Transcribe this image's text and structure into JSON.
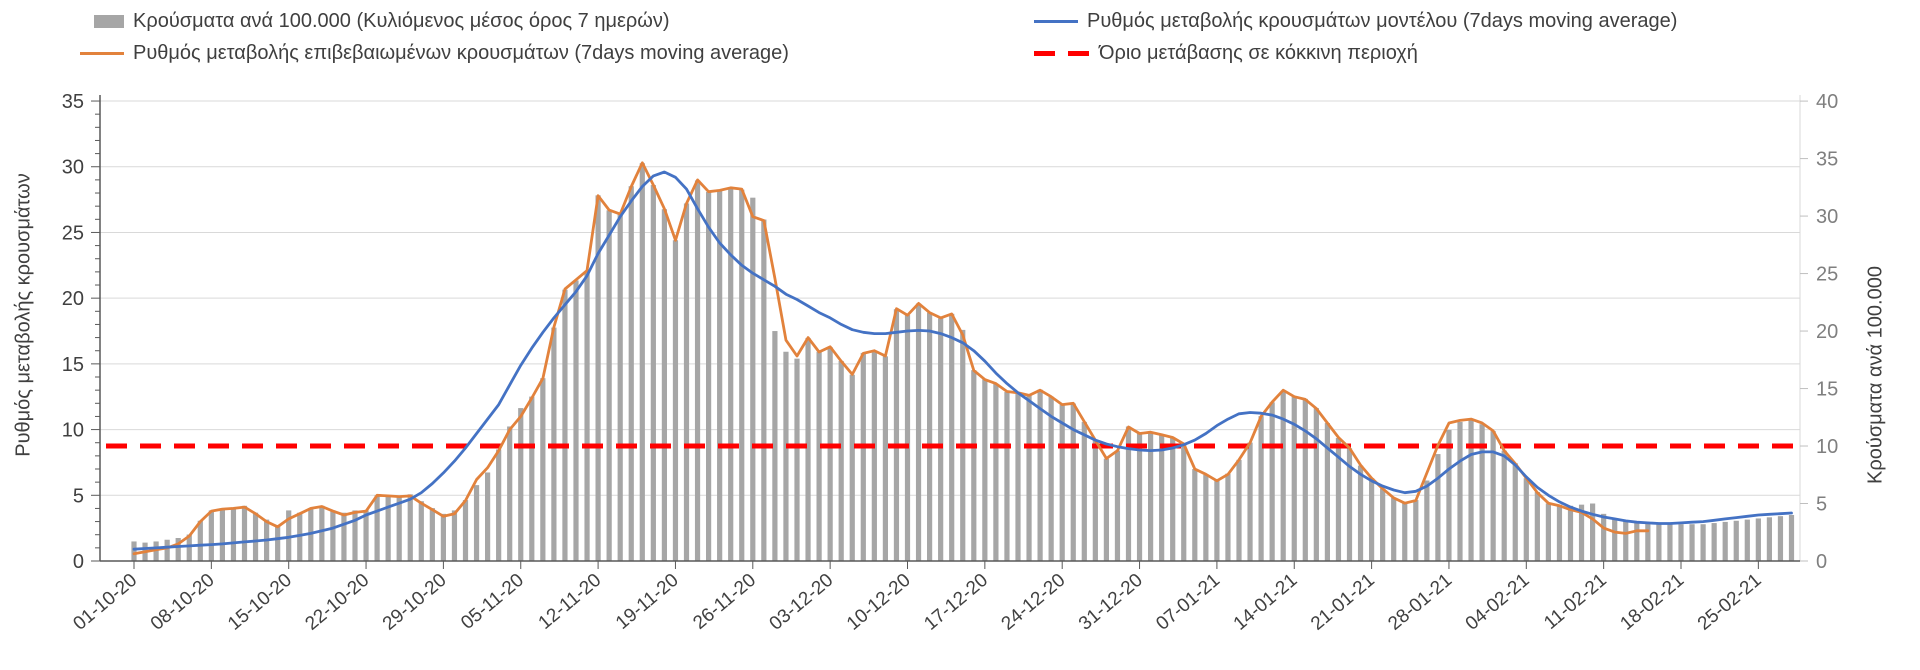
{
  "legend": {
    "items": [
      {
        "swatch": "bar",
        "color": "#A6A6A6"
      },
      {
        "swatch": "line",
        "color": "#4472C4"
      },
      {
        "swatch": "line",
        "color": "#E2823C"
      },
      {
        "swatch": "dash",
        "color": "#FF0000"
      }
    ]
  },
  "chart_data": {
    "type": "combo",
    "title": "",
    "num_points": 151,
    "x": {
      "start": "01-10-20",
      "end": "28-02-21",
      "frequency": "daily",
      "tick_labels": [
        "01-10-20",
        "08-10-20",
        "15-10-20",
        "22-10-20",
        "29-10-20",
        "05-11-20",
        "12-11-20",
        "19-11-20",
        "26-11-20",
        "03-12-20",
        "10-12-20",
        "17-12-20",
        "24-12-20",
        "31-12-20",
        "07-01-21",
        "14-01-21",
        "21-01-21",
        "28-01-21",
        "04-02-21",
        "11-02-21",
        "18-02-21",
        "25-02-21"
      ]
    },
    "axes": {
      "left": {
        "title": "Ρυθμός μεταβολής κρουσμάτων",
        "min": 0,
        "max": 35,
        "ticks": [
          0,
          5,
          10,
          15,
          20,
          25,
          30,
          35
        ]
      },
      "right": {
        "title": "Κρούσματα ανά 100.000",
        "min": 0,
        "max": 40,
        "ticks": [
          0,
          5,
          10,
          15,
          20,
          25,
          30,
          35,
          40
        ]
      }
    },
    "grid": true,
    "series": [
      {
        "name": "Κρούσματα ανά 100.000 (Κυλιόμενος μέσος όρος 7 ημερών)",
        "type": "bar",
        "axis": "right",
        "color": "#A6A6A6",
        "values": [
          1.7,
          1.6,
          1.7,
          1.85,
          2.0,
          2.3,
          3.5,
          4.4,
          4.5,
          4.6,
          4.8,
          4.2,
          3.6,
          3.1,
          4.4,
          4.2,
          4.6,
          4.8,
          4.4,
          4.2,
          4.4,
          4.4,
          5.7,
          5.7,
          5.6,
          5.8,
          5.2,
          4.6,
          4.1,
          4.4,
          5.3,
          6.6,
          7.7,
          9.7,
          11.7,
          13.3,
          14.3,
          15.9,
          20.3,
          23.6,
          24.4,
          25.2,
          31.8,
          30.5,
          30.2,
          32.6,
          34.6,
          32.7,
          30.6,
          27.9,
          31.1,
          33.1,
          32.1,
          32.2,
          32.5,
          32.3,
          31.6,
          29.7,
          20.0,
          18.2,
          17.6,
          19.4,
          18.2,
          18.6,
          17.4,
          16.2,
          18.1,
          18.3,
          17.8,
          21.9,
          21.4,
          22.4,
          21.6,
          21.1,
          21.5,
          20.1,
          16.6,
          15.8,
          15.4,
          14.7,
          14.6,
          14.4,
          14.9,
          14.3,
          13.6,
          13.7,
          12.1,
          10.5,
          8.9,
          9.6,
          11.7,
          11.1,
          11.2,
          11.0,
          10.7,
          10.2,
          8.0,
          7.5,
          7.0,
          7.6,
          8.8,
          10.3,
          12.6,
          13.8,
          14.8,
          14.3,
          14.1,
          13.3,
          12.0,
          10.7,
          9.8,
          8.3,
          7.2,
          6.3,
          5.5,
          5.0,
          5.3,
          7.0,
          9.3,
          11.4,
          12.1,
          12.3,
          11.9,
          11.3,
          9.6,
          8.5,
          7.2,
          6.0,
          5.0,
          4.9,
          4.8,
          4.9,
          5.0,
          4.1,
          3.7,
          3.5,
          3.4,
          3.3,
          3.2,
          3.2,
          3.2,
          3.2,
          3.2,
          3.3,
          3.4,
          3.5,
          3.6,
          3.7,
          3.8,
          3.9,
          4.0
        ]
      },
      {
        "name": "Ρυθμός μεταβολής επιβεβαιωμένων κρουσμάτων (7days moving average)",
        "type": "line",
        "axis": "left",
        "color": "#E2823C",
        "values": [
          0.55,
          0.7,
          0.85,
          1.0,
          1.3,
          1.9,
          3.0,
          3.8,
          3.95,
          4.0,
          4.1,
          3.6,
          3.0,
          2.6,
          3.2,
          3.6,
          4.0,
          4.15,
          3.8,
          3.5,
          3.7,
          3.8,
          5.0,
          4.95,
          4.9,
          4.95,
          4.4,
          3.9,
          3.4,
          3.6,
          4.6,
          6.2,
          7.1,
          8.4,
          10.0,
          11.0,
          12.4,
          13.9,
          17.8,
          20.7,
          21.4,
          22.1,
          27.8,
          26.7,
          26.4,
          28.5,
          30.3,
          28.6,
          26.8,
          24.4,
          27.2,
          29.0,
          28.1,
          28.2,
          28.4,
          28.3,
          26.2,
          25.9,
          21.5,
          16.8,
          15.6,
          17.0,
          15.9,
          16.3,
          15.2,
          14.2,
          15.8,
          16.0,
          15.6,
          19.2,
          18.7,
          19.6,
          18.9,
          18.5,
          18.8,
          17.2,
          14.5,
          13.8,
          13.5,
          12.9,
          12.8,
          12.6,
          13.0,
          12.5,
          11.9,
          12.0,
          10.6,
          9.2,
          7.8,
          8.4,
          10.2,
          9.7,
          9.8,
          9.6,
          9.4,
          8.9,
          7.0,
          6.6,
          6.1,
          6.6,
          7.7,
          9.0,
          11.0,
          12.1,
          13.0,
          12.5,
          12.3,
          11.6,
          10.5,
          9.4,
          8.6,
          7.3,
          6.3,
          5.5,
          4.8,
          4.4,
          4.6,
          6.7,
          8.8,
          10.5,
          10.7,
          10.8,
          10.5,
          9.9,
          8.4,
          7.4,
          6.3,
          5.2,
          4.4,
          4.2,
          3.9,
          3.7,
          3.2,
          2.5,
          2.2,
          2.1,
          2.3,
          2.3,
          null,
          null,
          null,
          null,
          null,
          null,
          null,
          null,
          null,
          null,
          null,
          null,
          null
        ]
      },
      {
        "name": "Ρυθμός μεταβολής κρουσμάτων μοντέλου (7days moving average)",
        "type": "line",
        "axis": "left",
        "color": "#4472C4",
        "values": [
          0.9,
          0.95,
          1.0,
          1.05,
          1.1,
          1.15,
          1.2,
          1.25,
          1.3,
          1.38,
          1.45,
          1.52,
          1.6,
          1.7,
          1.8,
          1.95,
          2.1,
          2.3,
          2.5,
          2.8,
          3.1,
          3.5,
          3.8,
          4.1,
          4.4,
          4.7,
          5.2,
          5.9,
          6.7,
          7.6,
          8.6,
          9.7,
          10.8,
          11.9,
          13.4,
          14.9,
          16.2,
          17.4,
          18.5,
          19.5,
          20.5,
          21.7,
          23.4,
          24.8,
          26.2,
          27.4,
          28.5,
          29.3,
          29.6,
          29.2,
          28.3,
          26.8,
          25.4,
          24.2,
          23.3,
          22.5,
          21.9,
          21.4,
          20.9,
          20.3,
          19.9,
          19.4,
          18.9,
          18.5,
          18.0,
          17.6,
          17.4,
          17.3,
          17.3,
          17.4,
          17.5,
          17.55,
          17.5,
          17.3,
          17.0,
          16.6,
          16.0,
          15.2,
          14.3,
          13.5,
          12.8,
          12.2,
          11.6,
          11.0,
          10.5,
          10.0,
          9.6,
          9.2,
          8.9,
          8.7,
          8.55,
          8.45,
          8.4,
          8.45,
          8.6,
          8.85,
          9.2,
          9.7,
          10.3,
          10.8,
          11.2,
          11.3,
          11.25,
          11.1,
          10.8,
          10.4,
          9.9,
          9.3,
          8.6,
          7.9,
          7.2,
          6.6,
          6.1,
          5.7,
          5.4,
          5.2,
          5.3,
          5.7,
          6.3,
          7.0,
          7.6,
          8.1,
          8.3,
          8.3,
          8.0,
          7.3,
          6.4,
          5.6,
          5.0,
          4.5,
          4.1,
          3.8,
          3.55,
          3.35,
          3.2,
          3.05,
          2.95,
          2.9,
          2.85,
          2.85,
          2.9,
          2.95,
          3.0,
          3.1,
          3.2,
          3.3,
          3.4,
          3.5,
          3.55,
          3.6,
          3.65
        ]
      },
      {
        "name": "Όριο μετάβασης σε κόκκινη περιοχή",
        "type": "threshold",
        "axis": "right",
        "color": "#FF0000",
        "value": 10
      }
    ]
  }
}
